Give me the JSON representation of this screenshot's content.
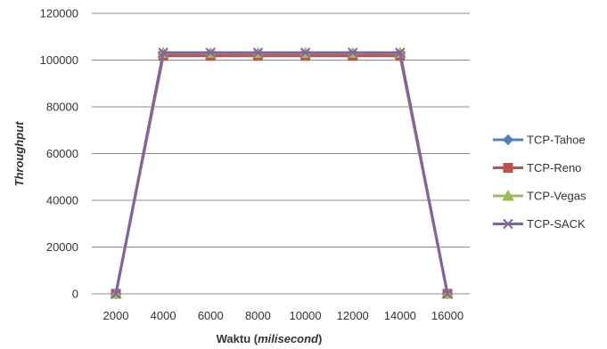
{
  "chart_data": {
    "type": "line",
    "x": [
      2000,
      4000,
      6000,
      8000,
      10000,
      12000,
      14000,
      16000
    ],
    "series": [
      {
        "name": "TCP-Tahoe",
        "color": "#4f81bd",
        "marker": "diamond",
        "values": [
          0,
          102800,
          102800,
          102800,
          102800,
          102800,
          102800,
          0
        ]
      },
      {
        "name": "TCP-Reno",
        "color": "#c0504d",
        "marker": "square",
        "values": [
          0,
          101800,
          101800,
          101800,
          101800,
          101800,
          101800,
          0
        ]
      },
      {
        "name": "TCP-Vegas",
        "color": "#9bbb59",
        "marker": "triangle",
        "values": [
          0,
          103000,
          103000,
          103000,
          103000,
          103000,
          103000,
          0
        ]
      },
      {
        "name": "TCP-SACK",
        "color": "#8064a2",
        "marker": "x",
        "values": [
          0,
          103200,
          103200,
          103200,
          103200,
          103200,
          103200,
          0
        ]
      }
    ],
    "title": "",
    "xlabel_main": "Waktu (",
    "xlabel_italic": "milisecond",
    "xlabel_end": ")",
    "ylabel": "Throughput",
    "ylim": [
      0,
      120000
    ],
    "yticks": [
      "0",
      "20000",
      "40000",
      "60000",
      "80000",
      "100000",
      "120000"
    ],
    "xtick_labels": [
      "2000",
      "4000",
      "6000",
      "8000",
      "10000",
      "12000",
      "14000",
      "16000"
    ],
    "grid": "horizontal",
    "legend_position": "right"
  }
}
